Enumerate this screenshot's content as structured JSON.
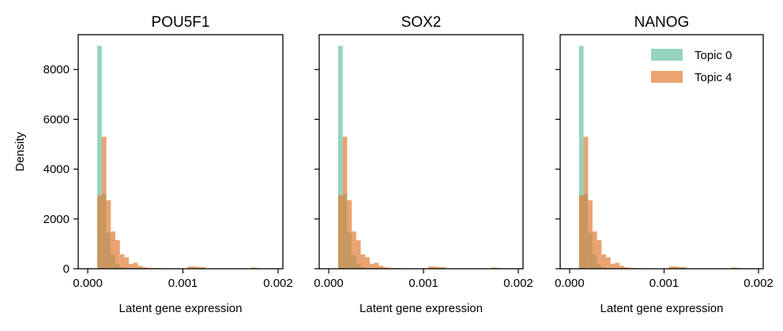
{
  "chart_data": [
    {
      "type": "histogram",
      "title": "POU5F1",
      "xlabel": "Latent gene expression",
      "ylabel": "Density",
      "xlim": [
        -0.0001,
        0.00205
      ],
      "ylim": [
        0,
        9400
      ],
      "xticks": [
        0.0,
        0.001,
        0.002
      ],
      "xtick_labels": [
        "0.000",
        "0.001",
        "0.002"
      ],
      "yticks": [
        0,
        2000,
        4000,
        6000,
        8000
      ],
      "ytick_labels": [
        "0",
        "2000",
        "4000",
        "6000",
        "8000"
      ],
      "grid": false,
      "bin_edges": [
        0.0001,
        0.0001475,
        0.000195,
        0.0002425,
        0.00029,
        0.0003375,
        0.000385,
        0.0004325,
        0.00048,
        0.0005275,
        0.000575,
        0.0006225,
        0.00067,
        0.0007175,
        0.000765,
        0.0008125,
        0.00086,
        0.0009075,
        0.000955,
        0.0010025,
        0.00105,
        0.0010975,
        0.001145,
        0.0011925,
        0.00124,
        0.0012875,
        0.001335,
        0.0013825,
        0.00143,
        0.0014775,
        0.001525,
        0.0015725,
        0.00162,
        0.0016675,
        0.001715,
        0.0017625,
        0.00181,
        0.0018575,
        0.001905,
        0.0019525,
        0.002
      ],
      "series": [
        {
          "name": "Topic 0",
          "values": [
            8950,
            3000,
            1450,
            550,
            180,
            60,
            20,
            8,
            4,
            2,
            0,
            0,
            0,
            0,
            0,
            0,
            0,
            0,
            0,
            0,
            0,
            0,
            0,
            0,
            0,
            0,
            0,
            0,
            0,
            0,
            0,
            0,
            0,
            0,
            0,
            0,
            0,
            0,
            0,
            0
          ]
        },
        {
          "name": "Topic 4",
          "values": [
            2950,
            5300,
            2750,
            1500,
            1150,
            580,
            460,
            200,
            240,
            120,
            60,
            40,
            30,
            25,
            20,
            15,
            10,
            8,
            5,
            5,
            90,
            90,
            70,
            60,
            15,
            10,
            8,
            5,
            3,
            3,
            3,
            2,
            2,
            2,
            50,
            30,
            5,
            3,
            2,
            2
          ]
        }
      ]
    },
    {
      "type": "histogram",
      "title": "SOX2",
      "xlabel": "Latent gene expression",
      "ylabel": "",
      "xlim": [
        -0.0001,
        0.00205
      ],
      "ylim": [
        0,
        9400
      ],
      "xticks": [
        0.0,
        0.001,
        0.002
      ],
      "xtick_labels": [
        "0.000",
        "0.001",
        "0.002"
      ],
      "yticks": [
        0,
        2000,
        4000,
        6000,
        8000
      ],
      "ytick_labels": [],
      "grid": false,
      "bin_edges": [
        0.0001,
        0.0001475,
        0.000195,
        0.0002425,
        0.00029,
        0.0003375,
        0.000385,
        0.0004325,
        0.00048,
        0.0005275,
        0.000575,
        0.0006225,
        0.00067,
        0.0007175,
        0.000765,
        0.0008125,
        0.00086,
        0.0009075,
        0.000955,
        0.0010025,
        0.00105,
        0.0010975,
        0.001145,
        0.0011925,
        0.00124,
        0.0012875,
        0.001335,
        0.0013825,
        0.00143,
        0.0014775,
        0.001525,
        0.0015725,
        0.00162,
        0.0016675,
        0.001715,
        0.0017625,
        0.00181,
        0.0018575,
        0.001905,
        0.0019525,
        0.002
      ],
      "series": [
        {
          "name": "Topic 0",
          "values": [
            8950,
            3000,
            1450,
            550,
            180,
            60,
            20,
            8,
            4,
            2,
            0,
            0,
            0,
            0,
            0,
            0,
            0,
            0,
            0,
            0,
            0,
            0,
            0,
            0,
            0,
            0,
            0,
            0,
            0,
            0,
            0,
            0,
            0,
            0,
            0,
            0,
            0,
            0,
            0,
            0
          ]
        },
        {
          "name": "Topic 4",
          "values": [
            2950,
            5300,
            2750,
            1500,
            1150,
            580,
            460,
            200,
            240,
            120,
            60,
            40,
            30,
            25,
            20,
            15,
            10,
            8,
            5,
            5,
            90,
            90,
            70,
            60,
            15,
            10,
            8,
            5,
            3,
            3,
            3,
            2,
            2,
            2,
            50,
            30,
            5,
            3,
            2,
            2
          ]
        }
      ]
    },
    {
      "type": "histogram",
      "title": "NANOG",
      "xlabel": "Latent gene expression",
      "ylabel": "",
      "xlim": [
        -0.0001,
        0.00205
      ],
      "ylim": [
        0,
        9400
      ],
      "xticks": [
        0.0,
        0.001,
        0.002
      ],
      "xtick_labels": [
        "0.000",
        "0.001",
        "0.002"
      ],
      "yticks": [
        0,
        2000,
        4000,
        6000,
        8000
      ],
      "ytick_labels": [],
      "grid": false,
      "legend": "top-right",
      "bin_edges": [
        0.0001,
        0.0001475,
        0.000195,
        0.0002425,
        0.00029,
        0.0003375,
        0.000385,
        0.0004325,
        0.00048,
        0.0005275,
        0.000575,
        0.0006225,
        0.00067,
        0.0007175,
        0.000765,
        0.0008125,
        0.00086,
        0.0009075,
        0.000955,
        0.0010025,
        0.00105,
        0.0010975,
        0.001145,
        0.0011925,
        0.00124,
        0.0012875,
        0.001335,
        0.0013825,
        0.00143,
        0.0014775,
        0.001525,
        0.0015725,
        0.00162,
        0.0016675,
        0.001715,
        0.0017625,
        0.00181,
        0.0018575,
        0.001905,
        0.0019525,
        0.002
      ],
      "series": [
        {
          "name": "Topic 0",
          "values": [
            8950,
            3000,
            1450,
            550,
            180,
            60,
            20,
            8,
            4,
            2,
            0,
            0,
            0,
            0,
            0,
            0,
            0,
            0,
            0,
            0,
            0,
            0,
            0,
            0,
            0,
            0,
            0,
            0,
            0,
            0,
            0,
            0,
            0,
            0,
            0,
            0,
            0,
            0,
            0,
            0
          ]
        },
        {
          "name": "Topic 4",
          "values": [
            2950,
            5300,
            2750,
            1500,
            1150,
            580,
            460,
            200,
            240,
            120,
            60,
            40,
            30,
            25,
            20,
            15,
            10,
            8,
            5,
            5,
            90,
            90,
            70,
            60,
            15,
            10,
            8,
            5,
            3,
            3,
            3,
            2,
            2,
            2,
            50,
            30,
            5,
            3,
            2,
            2
          ]
        }
      ]
    }
  ],
  "colors": {
    "topic_0": "#66c2a5",
    "topic_4": "#e17c35",
    "series_opacity": 0.7,
    "axis": "#000000"
  }
}
